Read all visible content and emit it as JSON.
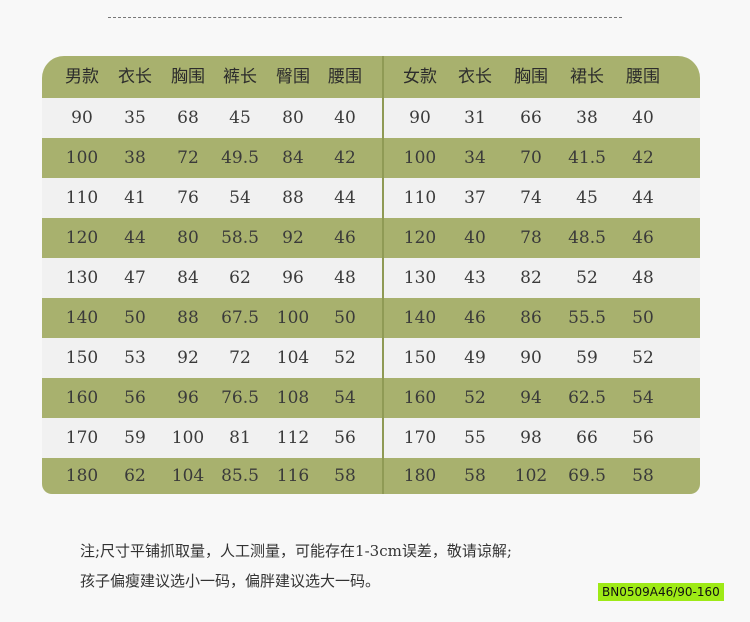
{
  "men": {
    "headers": [
      "男款",
      "衣长",
      "胸围",
      "裤长",
      "臀围",
      "腰围"
    ],
    "rows": [
      [
        "90",
        "35",
        "68",
        "45",
        "80",
        "40"
      ],
      [
        "100",
        "38",
        "72",
        "49.5",
        "84",
        "42"
      ],
      [
        "110",
        "41",
        "76",
        "54",
        "88",
        "44"
      ],
      [
        "120",
        "44",
        "80",
        "58.5",
        "92",
        "46"
      ],
      [
        "130",
        "47",
        "84",
        "62",
        "96",
        "48"
      ],
      [
        "140",
        "50",
        "88",
        "67.5",
        "100",
        "50"
      ],
      [
        "150",
        "53",
        "92",
        "72",
        "104",
        "52"
      ],
      [
        "160",
        "56",
        "96",
        "76.5",
        "108",
        "54"
      ],
      [
        "170",
        "59",
        "100",
        "81",
        "112",
        "56"
      ],
      [
        "180",
        "62",
        "104",
        "85.5",
        "116",
        "58"
      ]
    ]
  },
  "women": {
    "headers": [
      "女款",
      "衣长",
      "胸围",
      "裙长",
      "腰围"
    ],
    "rows": [
      [
        "90",
        "31",
        "66",
        "38",
        "40"
      ],
      [
        "100",
        "34",
        "70",
        "41.5",
        "42"
      ],
      [
        "110",
        "37",
        "74",
        "45",
        "44"
      ],
      [
        "120",
        "40",
        "78",
        "48.5",
        "46"
      ],
      [
        "130",
        "43",
        "82",
        "52",
        "48"
      ],
      [
        "140",
        "46",
        "86",
        "55.5",
        "50"
      ],
      [
        "150",
        "49",
        "90",
        "59",
        "52"
      ],
      [
        "160",
        "52",
        "94",
        "62.5",
        "54"
      ],
      [
        "170",
        "55",
        "98",
        "66",
        "56"
      ],
      [
        "180",
        "58",
        "102",
        "69.5",
        "58"
      ]
    ]
  },
  "notes": [
    "注;尺寸平铺抓取量，人工测量，可能存在1-3cm误差，敬请谅解;",
    "孩子偏瘦建议选小一码，偏胖建议选大一码。"
  ],
  "product_code": "BN0509A46/90-160",
  "colors": {
    "green": "#a8b16e",
    "light_row": "#f1f1f1",
    "code_bg": "#9eea16"
  }
}
